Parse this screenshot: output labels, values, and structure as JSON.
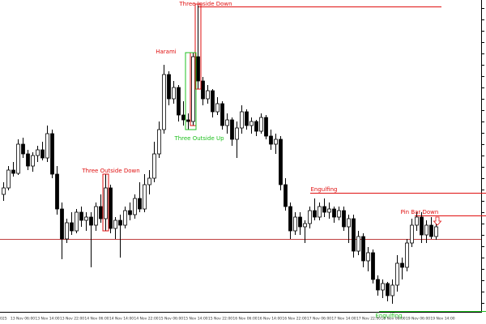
{
  "chart_data": {
    "type": "candlestick",
    "ylim": [
      15,
      400
    ],
    "up_color": "#ffffff",
    "down_color": "#000000",
    "outline_color": "#000000",
    "open": [
      160,
      168,
      190,
      186,
      222,
      210,
      195,
      208,
      215,
      205,
      235,
      185,
      142,
      105,
      125,
      115,
      138,
      128,
      132,
      122,
      145,
      130,
      168,
      118,
      128,
      122,
      140,
      135,
      155,
      142,
      172,
      180,
      210,
      240,
      308,
      278,
      292,
      258,
      252,
      250,
      330,
      300,
      278,
      288,
      262,
      272,
      245,
      252,
      228,
      242,
      262,
      245,
      250,
      238,
      255,
      232,
      222,
      228,
      172,
      145,
      115,
      132,
      120,
      124,
      140,
      132,
      145,
      138,
      142,
      132,
      140,
      120,
      130,
      90,
      108,
      78,
      88,
      55,
      42,
      50,
      35,
      48,
      75,
      70,
      100,
      122,
      132,
      110,
      122,
      108
    ],
    "high": [
      175,
      195,
      200,
      228,
      230,
      215,
      212,
      220,
      225,
      245,
      240,
      195,
      150,
      130,
      138,
      142,
      145,
      138,
      138,
      150,
      160,
      185,
      172,
      132,
      135,
      145,
      150,
      160,
      175,
      185,
      190,
      225,
      250,
      320,
      312,
      300,
      295,
      275,
      260,
      335,
      395,
      305,
      295,
      290,
      280,
      275,
      260,
      255,
      250,
      270,
      265,
      255,
      252,
      260,
      258,
      240,
      235,
      232,
      180,
      150,
      138,
      138,
      128,
      145,
      155,
      150,
      155,
      150,
      145,
      145,
      145,
      135,
      135,
      115,
      112,
      95,
      92,
      60,
      55,
      52,
      55,
      85,
      82,
      105,
      130,
      138,
      138,
      128,
      132,
      125
    ],
    "low": [
      152,
      165,
      182,
      184,
      205,
      190,
      188,
      200,
      202,
      200,
      180,
      135,
      80,
      100,
      110,
      112,
      120,
      115,
      70,
      115,
      125,
      115,
      112,
      105,
      82,
      118,
      128,
      130,
      138,
      138,
      160,
      175,
      205,
      235,
      270,
      272,
      250,
      245,
      240,
      245,
      290,
      270,
      272,
      255,
      258,
      240,
      235,
      220,
      205,
      235,
      240,
      235,
      232,
      235,
      228,
      215,
      210,
      165,
      140,
      105,
      110,
      110,
      100,
      118,
      128,
      128,
      132,
      130,
      125,
      128,
      115,
      100,
      82,
      85,
      70,
      65,
      50,
      35,
      32,
      28,
      25,
      40,
      55,
      65,
      95,
      115,
      100,
      100,
      105,
      104
    ],
    "close": [
      168,
      190,
      186,
      222,
      210,
      195,
      208,
      215,
      205,
      235,
      185,
      142,
      105,
      125,
      115,
      138,
      128,
      132,
      122,
      145,
      130,
      168,
      118,
      128,
      122,
      140,
      135,
      155,
      142,
      172,
      180,
      210,
      240,
      308,
      278,
      292,
      258,
      252,
      250,
      330,
      300,
      278,
      288,
      262,
      272,
      245,
      252,
      228,
      242,
      262,
      245,
      250,
      238,
      255,
      232,
      222,
      228,
      172,
      145,
      115,
      132,
      120,
      124,
      140,
      132,
      145,
      138,
      142,
      132,
      140,
      120,
      130,
      90,
      108,
      78,
      88,
      55,
      42,
      50,
      35,
      48,
      75,
      70,
      100,
      122,
      132,
      110,
      122,
      108,
      120
    ],
    "x_labels": [
      "025",
      "13 Nov 06:00",
      "13 Nov 14:00",
      "13 Nov 22:00",
      "14 Nov 06:00",
      "14 Nov 14:00",
      "14 Nov 22:00",
      "15 Nov 06:00",
      "15 Nov 14:00",
      "15 Nov 22:00",
      "16 Nov 06:00",
      "16 Nov 14:00",
      "16 Nov 22:00",
      "17 Nov 06:00",
      "17 Nov 14:00",
      "17 Nov 22:00",
      "18 Nov 06:00",
      "19 Nov 06:00",
      "19 Nov 14:00"
    ],
    "annotations": [
      {
        "text": "Three Inside Down",
        "color": "#e01010"
      },
      {
        "text": "Harami",
        "color": "#e01010"
      },
      {
        "text": "Three Outside Up",
        "color": "#20c020"
      },
      {
        "text": "Three Outside Down",
        "color": "#e01010"
      },
      {
        "text": "Engulfing",
        "color": "#e01010"
      },
      {
        "text": "Pin Bar Down",
        "color": "#e01010"
      },
      {
        "text": "Engulfing",
        "color": "#20c020"
      }
    ],
    "levels": [
      {
        "value": 392,
        "color": "#e01010"
      },
      {
        "value": 162,
        "color": "#e01010"
      },
      {
        "value": 134,
        "color": "#e01010"
      },
      {
        "value": 105,
        "color": "#c04040"
      },
      {
        "value": 16,
        "color": "#20c020"
      }
    ]
  }
}
